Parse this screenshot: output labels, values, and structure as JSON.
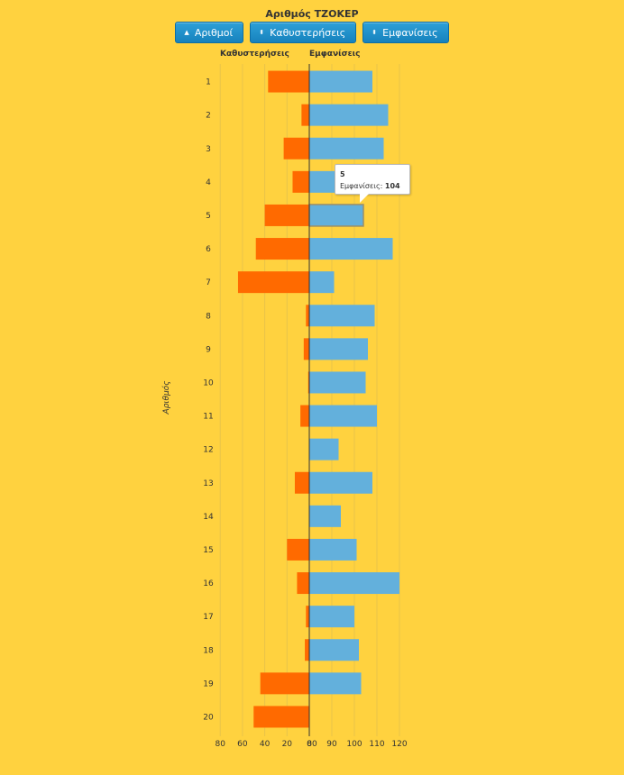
{
  "title": "Αριθμός ΤΖΟΚΕΡ",
  "buttons": [
    {
      "label": "Αριθμοί",
      "icon": "▲"
    },
    {
      "label": "Καθυστερήσεις",
      "icon": "⬍"
    },
    {
      "label": "Εμφανίσεις",
      "icon": "⬍"
    }
  ],
  "left_header": "Καθυστερήσεις",
  "right_header": "Εμφανίσεις",
  "y_axis_label": "Αριθμός",
  "colors": {
    "delays": "#ff6a00",
    "appearances": "#63b0dc",
    "background": "#ffd23f"
  },
  "tooltip": {
    "number": "5",
    "label": "Εμφανίσεις:",
    "value": "104"
  },
  "chart_data": {
    "type": "bar",
    "orientation": "horizontal-diverging",
    "categories": [
      "1",
      "2",
      "3",
      "4",
      "5",
      "6",
      "7",
      "8",
      "9",
      "10",
      "11",
      "12",
      "13",
      "14",
      "15",
      "16",
      "17",
      "18",
      "19",
      "20"
    ],
    "series": [
      {
        "name": "Καθυστερήσεις",
        "side": "left",
        "values": [
          37,
          7,
          23,
          15,
          40,
          48,
          64,
          3,
          5,
          1,
          8,
          0,
          13,
          0,
          20,
          11,
          3,
          4,
          44,
          50
        ]
      },
      {
        "name": "Εμφανίσεις",
        "side": "right",
        "values": [
          108,
          115,
          113,
          105,
          104,
          117,
          91,
          109,
          106,
          105,
          110,
          93,
          108,
          94,
          101,
          120,
          100,
          102,
          103,
          80
        ]
      }
    ],
    "left_axis": {
      "ticks": [
        "80",
        "60",
        "40",
        "20",
        "0"
      ],
      "range": [
        80,
        0
      ]
    },
    "right_axis": {
      "ticks": [
        "80",
        "90",
        "100",
        "110",
        "120"
      ],
      "range": [
        80,
        120
      ]
    },
    "grid": true
  }
}
